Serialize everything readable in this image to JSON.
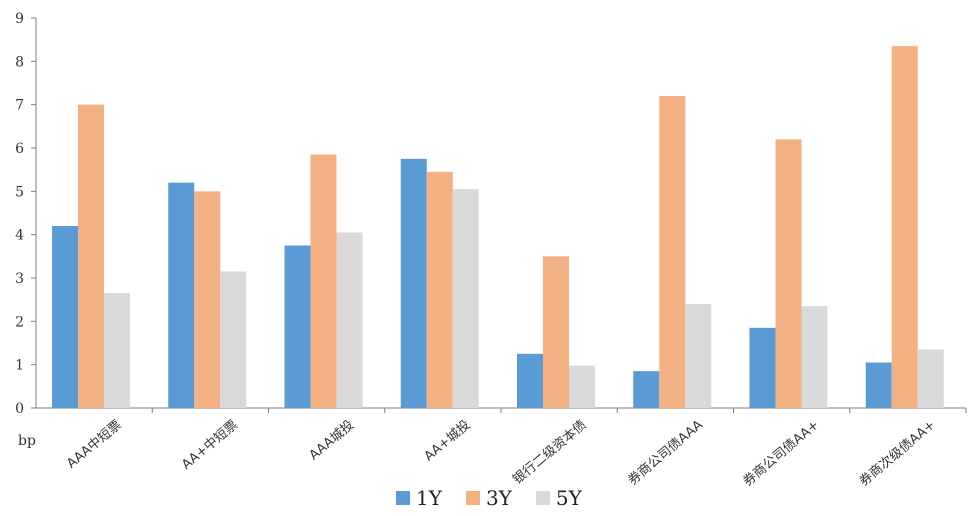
{
  "chart_data": {
    "type": "bar",
    "title": "",
    "ylabel": "bp",
    "xlabel": "",
    "ylim": [
      0,
      9
    ],
    "yticks": [
      0,
      1,
      2,
      3,
      4,
      5,
      6,
      7,
      8,
      9
    ],
    "grid": false,
    "legend_position": "bottom",
    "categories": [
      "AAA中短票",
      "AA+中短票",
      "AAA城投",
      "AA+城投",
      "银行二级资本债",
      "券商公司债AAA",
      "券商公司债AA+",
      "券商次级债AA+"
    ],
    "series": [
      {
        "name": "1Y",
        "color": "#5b9bd5",
        "values": [
          4.2,
          5.2,
          3.75,
          5.75,
          1.25,
          0.85,
          1.85,
          1.05
        ]
      },
      {
        "name": "3Y",
        "color": "#f4b183",
        "values": [
          7.0,
          5.0,
          5.85,
          5.45,
          3.5,
          7.2,
          6.2,
          8.35
        ]
      },
      {
        "name": "5Y",
        "color": "#d9d9d9",
        "values": [
          2.65,
          3.15,
          4.05,
          5.05,
          0.98,
          2.4,
          2.35,
          1.35
        ]
      }
    ]
  }
}
